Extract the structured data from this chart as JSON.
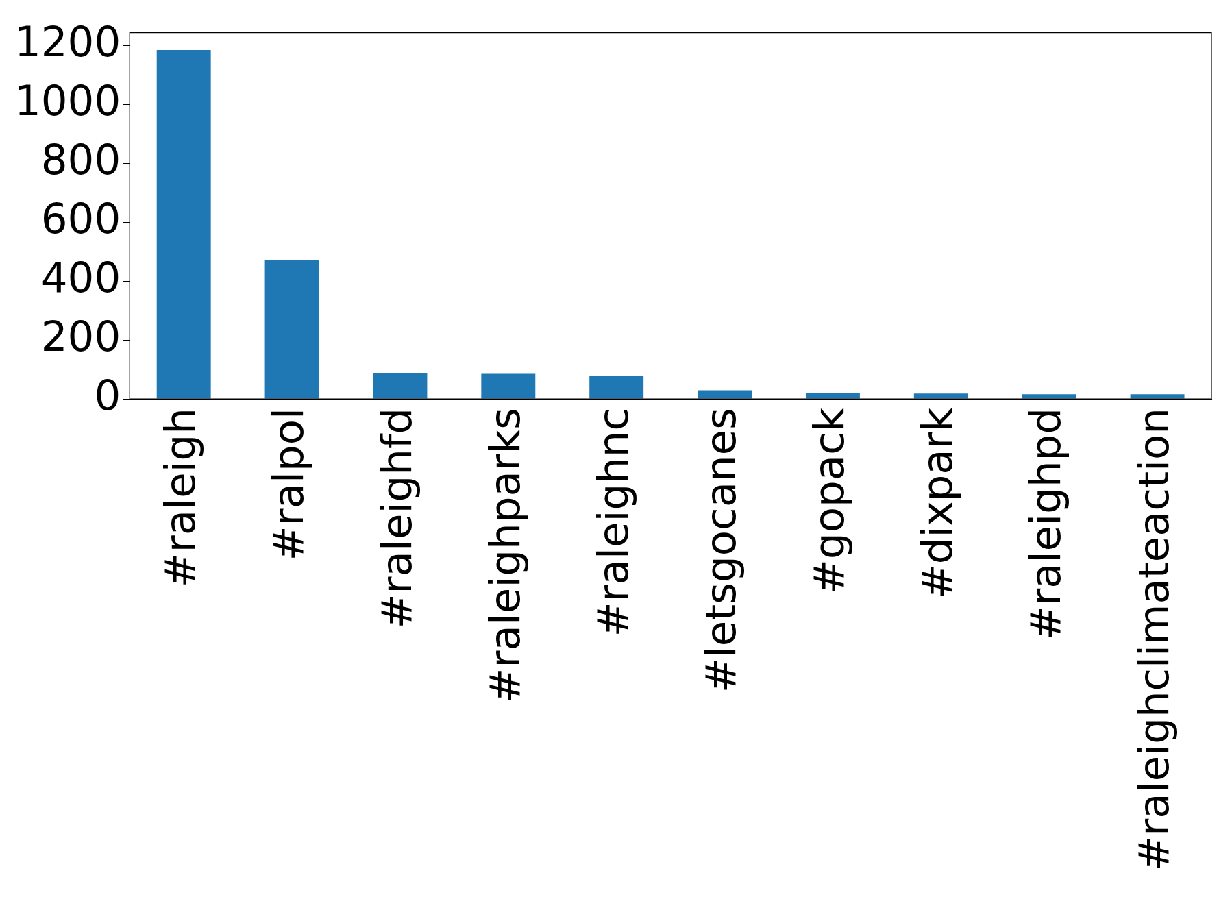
{
  "chart_data": {
    "type": "bar",
    "categories": [
      "#raleigh",
      "#ralpol",
      "#raleighfd",
      "#raleighparks",
      "#raleighnc",
      "#letsgocanes",
      "#gopack",
      "#dixpark",
      "#raleighpd",
      "#raleighclimateaction"
    ],
    "values": [
      1185,
      471,
      87,
      85,
      79,
      29,
      21,
      18,
      16,
      16
    ],
    "color": "#1f77b4",
    "ylim": [
      0,
      1244
    ],
    "yticks": [
      0,
      200,
      400,
      600,
      800,
      1000,
      1200
    ],
    "grid": false,
    "legend": false
  }
}
